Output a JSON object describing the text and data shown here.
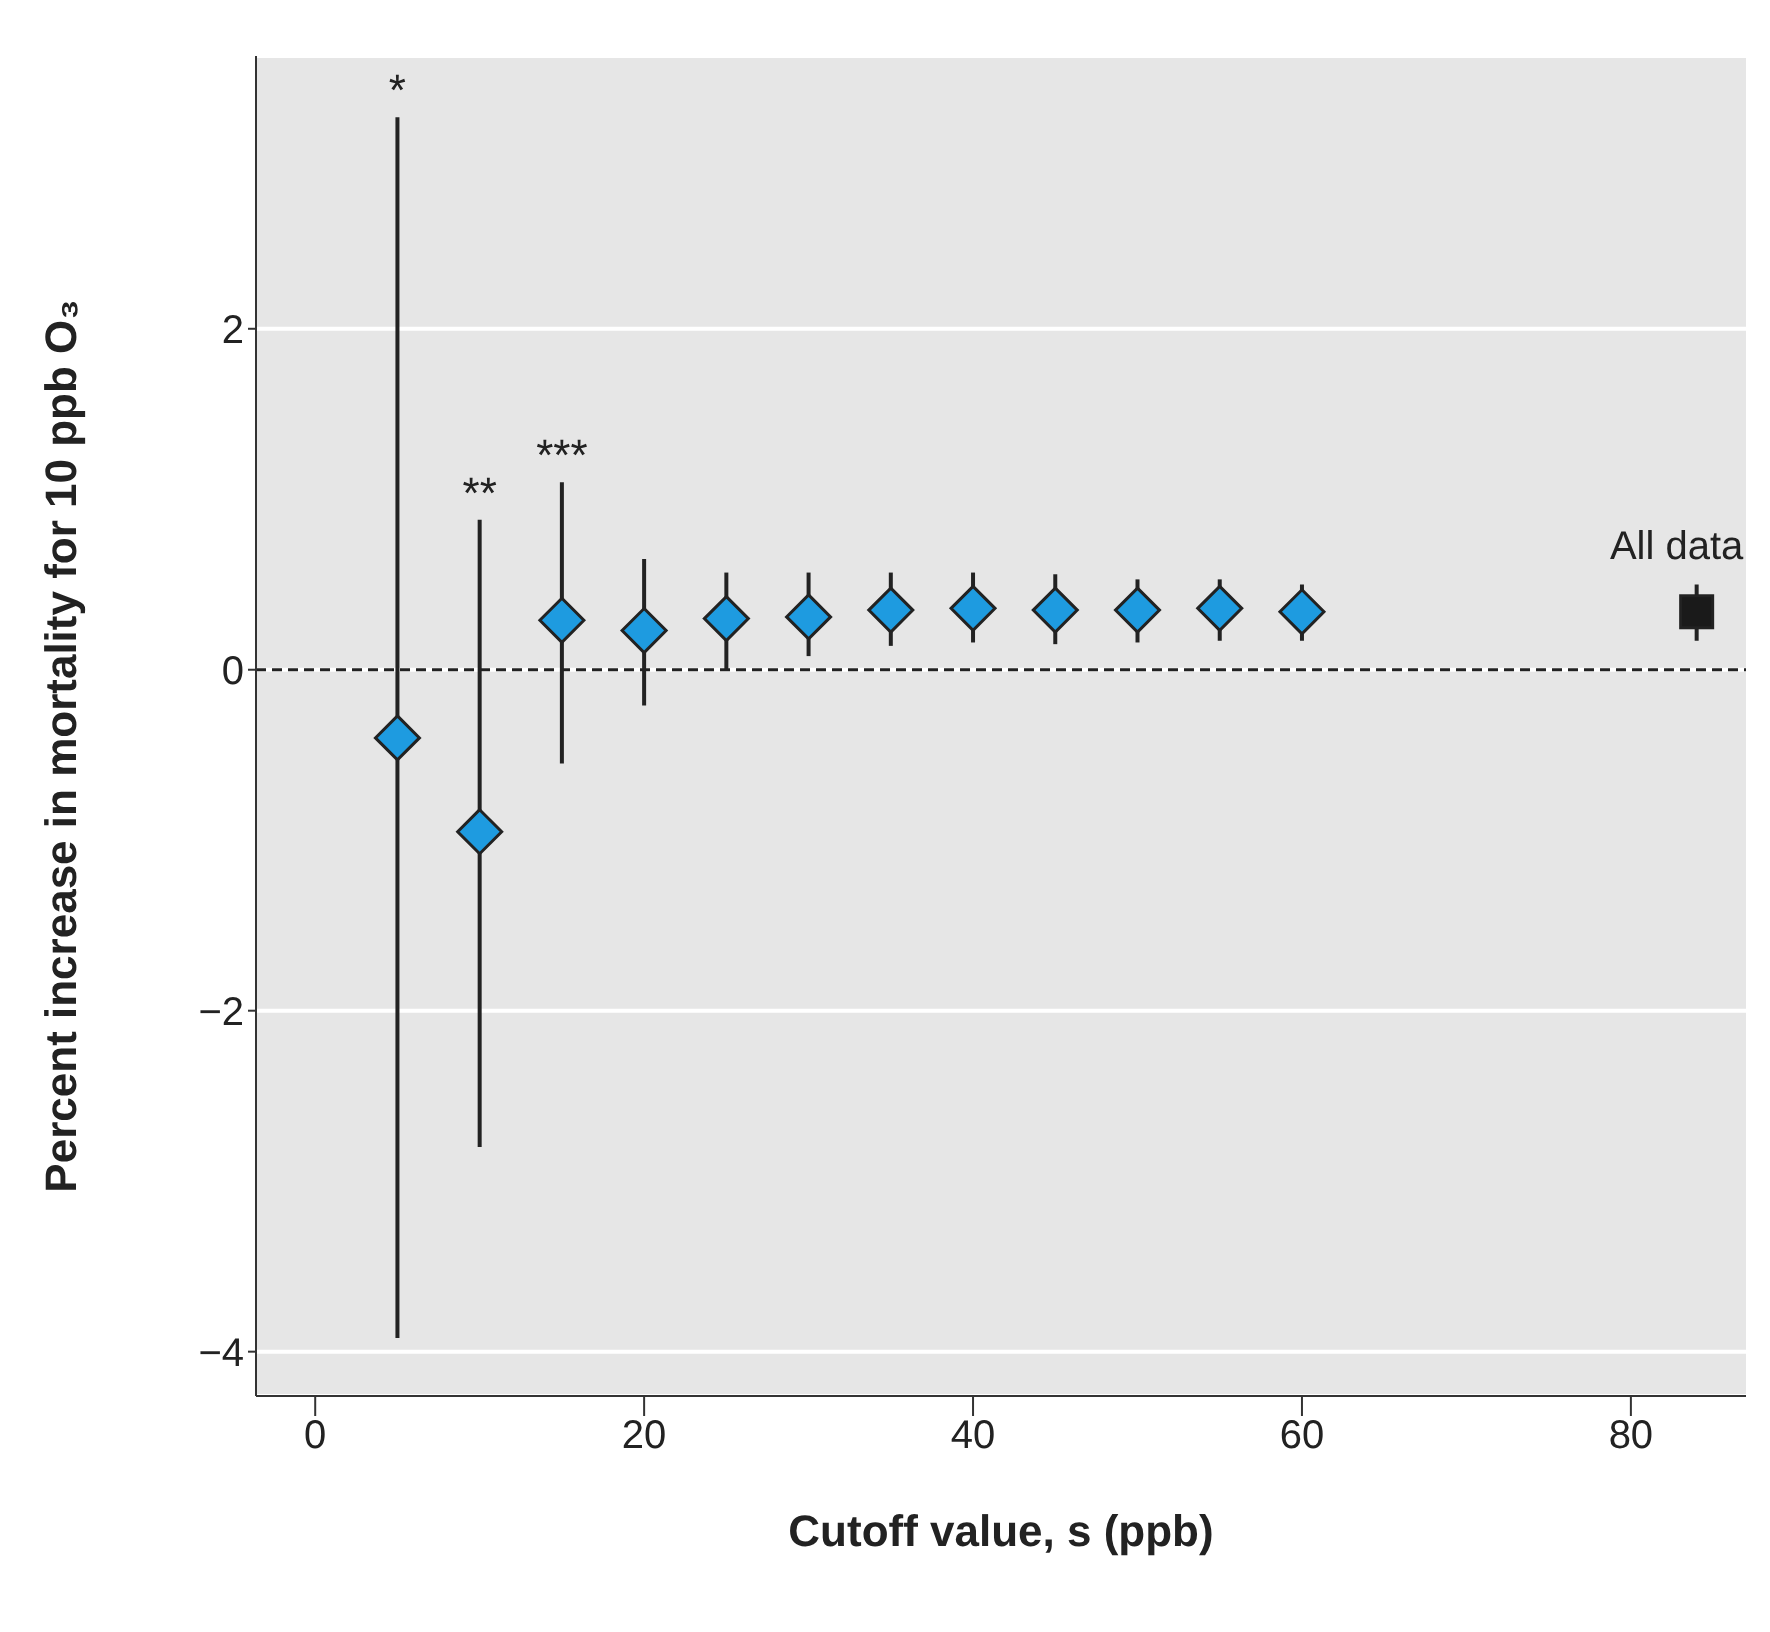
{
  "chart_data": {
    "type": "scatter",
    "xlabel": "Cutoff value, s (ppb)",
    "ylabel": "Percent increase in mortality for 10 ppb O₃",
    "xlim": [
      -3.6,
      87
    ],
    "xticks": [
      0,
      20,
      40,
      60,
      80
    ],
    "ylim": [
      -4.26,
      3.6
    ],
    "yticks": [
      {
        "value": -4,
        "label": "−4"
      },
      {
        "value": -2,
        "label": "−2"
      },
      0,
      2
    ],
    "grid": "y",
    "legend": false,
    "series": [
      {
        "color": "#1e9be0",
        "marker": "diamond",
        "x": [
          5,
          10,
          15,
          20,
          25,
          30,
          35,
          40,
          45,
          50,
          55,
          60
        ],
        "values": [
          -0.4,
          -0.95,
          0.29,
          0.23,
          0.3,
          0.31,
          0.35,
          0.36,
          0.35,
          0.35,
          0.36,
          0.34
        ],
        "errors": [
          [
            -3.92,
            3.24
          ],
          [
            -2.8,
            0.88
          ],
          [
            -0.55,
            1.1
          ],
          [
            -0.21,
            0.65
          ],
          [
            0.0,
            0.57
          ],
          [
            0.08,
            0.57
          ],
          [
            0.14,
            0.57
          ],
          [
            0.16,
            0.57
          ],
          [
            0.15,
            0.56
          ],
          [
            0.16,
            0.53
          ],
          [
            0.17,
            0.53
          ],
          [
            0.17,
            0.5
          ]
        ]
      },
      {
        "name": "All data",
        "color": "#1a1a1a",
        "marker": "square",
        "x": [
          84
        ],
        "values": [
          0.34
        ],
        "errors": [
          [
            0.17,
            0.5
          ]
        ]
      }
    ],
    "ref_lines": [
      {
        "axis": "y",
        "value": 0,
        "line_style": "dashed",
        "color": "#222222"
      }
    ],
    "annotations": [
      "*",
      "**",
      "***"
    ]
  }
}
